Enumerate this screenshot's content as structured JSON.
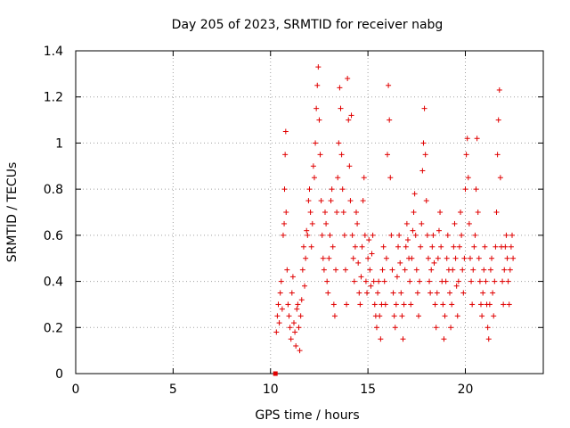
{
  "chart_data": {
    "type": "scatter",
    "title": "Day 205 of 2023, SRMTID for receiver nabg",
    "xlabel": "GPS time / hours",
    "ylabel": "SRMTID / TECUs",
    "xlim": [
      0,
      24
    ],
    "ylim": [
      0,
      1.4
    ],
    "xticks": [
      "0",
      "5",
      "10",
      "15",
      "20"
    ],
    "xtick_values": [
      0,
      5,
      10,
      15,
      20
    ],
    "yticks": [
      "0",
      "0.2",
      "0.4",
      "0.6",
      "0.8",
      "1",
      "1.2",
      "1.4"
    ],
    "ytick_values": [
      0,
      0.2,
      0.4,
      0.6,
      0.8,
      1.0,
      1.2,
      1.4
    ],
    "grid": true,
    "marker": "+",
    "color": "#e00000",
    "zero_marker": {
      "x": 10.25,
      "y": 0.0
    },
    "series": [
      {
        "values": [
          [
            10.3,
            0.18
          ],
          [
            10.35,
            0.25
          ],
          [
            10.4,
            0.3
          ],
          [
            10.45,
            0.22
          ],
          [
            10.5,
            0.35
          ],
          [
            10.55,
            0.4
          ],
          [
            10.6,
            0.28
          ],
          [
            10.65,
            0.6
          ],
          [
            10.7,
            0.65
          ],
          [
            10.72,
            0.8
          ],
          [
            10.75,
            0.95
          ],
          [
            10.78,
            1.05
          ],
          [
            10.8,
            0.7
          ],
          [
            10.85,
            0.45
          ],
          [
            10.9,
            0.3
          ],
          [
            10.95,
            0.25
          ],
          [
            11.0,
            0.2
          ],
          [
            11.05,
            0.15
          ],
          [
            11.1,
            0.35
          ],
          [
            11.15,
            0.42
          ],
          [
            11.2,
            0.22
          ],
          [
            11.25,
            0.18
          ],
          [
            11.3,
            0.12
          ],
          [
            11.35,
            0.28
          ],
          [
            11.4,
            0.3
          ],
          [
            11.45,
            0.2
          ],
          [
            11.5,
            0.1
          ],
          [
            11.55,
            0.25
          ],
          [
            11.6,
            0.32
          ],
          [
            11.65,
            0.45
          ],
          [
            11.7,
            0.55
          ],
          [
            11.75,
            0.38
          ],
          [
            11.8,
            0.5
          ],
          [
            11.85,
            0.62
          ],
          [
            11.9,
            0.6
          ],
          [
            11.95,
            0.75
          ],
          [
            12.0,
            0.8
          ],
          [
            12.05,
            0.7
          ],
          [
            12.1,
            0.55
          ],
          [
            12.15,
            0.65
          ],
          [
            12.2,
            0.9
          ],
          [
            12.25,
            0.85
          ],
          [
            12.3,
            1.0
          ],
          [
            12.35,
            1.15
          ],
          [
            12.4,
            1.25
          ],
          [
            12.45,
            1.33
          ],
          [
            12.5,
            1.1
          ],
          [
            12.55,
            0.95
          ],
          [
            12.6,
            0.75
          ],
          [
            12.65,
            0.6
          ],
          [
            12.7,
            0.5
          ],
          [
            12.75,
            0.45
          ],
          [
            12.8,
            0.7
          ],
          [
            12.85,
            0.65
          ],
          [
            12.9,
            0.4
          ],
          [
            12.95,
            0.35
          ],
          [
            13.0,
            0.5
          ],
          [
            13.05,
            0.6
          ],
          [
            13.1,
            0.75
          ],
          [
            13.15,
            0.8
          ],
          [
            13.2,
            0.55
          ],
          [
            13.25,
            0.3
          ],
          [
            13.3,
            0.25
          ],
          [
            13.35,
            0.45
          ],
          [
            13.4,
            0.7
          ],
          [
            13.45,
            0.85
          ],
          [
            13.5,
            1.0
          ],
          [
            13.55,
            1.24
          ],
          [
            13.6,
            1.15
          ],
          [
            13.65,
            0.95
          ],
          [
            13.7,
            0.8
          ],
          [
            13.75,
            0.7
          ],
          [
            13.8,
            0.6
          ],
          [
            13.85,
            0.45
          ],
          [
            13.9,
            0.3
          ],
          [
            13.95,
            1.28
          ],
          [
            14.0,
            1.1
          ],
          [
            14.05,
            0.9
          ],
          [
            14.1,
            0.75
          ],
          [
            14.15,
            1.12
          ],
          [
            14.2,
            0.6
          ],
          [
            14.25,
            0.5
          ],
          [
            14.3,
            0.4
          ],
          [
            14.35,
            0.55
          ],
          [
            14.4,
            0.7
          ],
          [
            14.45,
            0.65
          ],
          [
            14.5,
            0.48
          ],
          [
            14.55,
            0.35
          ],
          [
            14.6,
            0.3
          ],
          [
            14.65,
            0.42
          ],
          [
            14.7,
            0.55
          ],
          [
            14.75,
            0.75
          ],
          [
            14.8,
            0.85
          ],
          [
            14.85,
            0.6
          ],
          [
            14.9,
            0.4
          ],
          [
            14.95,
            0.35
          ],
          [
            15.0,
            0.5
          ],
          [
            15.05,
            0.58
          ],
          [
            15.1,
            0.45
          ],
          [
            15.15,
            0.38
          ],
          [
            15.2,
            0.52
          ],
          [
            15.25,
            0.6
          ],
          [
            15.3,
            0.4
          ],
          [
            15.35,
            0.3
          ],
          [
            15.4,
            0.25
          ],
          [
            15.45,
            0.2
          ],
          [
            15.5,
            0.35
          ],
          [
            15.55,
            0.4
          ],
          [
            15.6,
            0.25
          ],
          [
            15.65,
            0.15
          ],
          [
            15.7,
            0.3
          ],
          [
            15.75,
            0.45
          ],
          [
            15.8,
            0.55
          ],
          [
            15.85,
            0.4
          ],
          [
            15.9,
            0.3
          ],
          [
            15.95,
            0.5
          ],
          [
            16.0,
            0.95
          ],
          [
            16.05,
            1.25
          ],
          [
            16.1,
            1.1
          ],
          [
            16.15,
            0.85
          ],
          [
            16.2,
            0.6
          ],
          [
            16.25,
            0.45
          ],
          [
            16.3,
            0.35
          ],
          [
            16.35,
            0.25
          ],
          [
            16.4,
            0.2
          ],
          [
            16.45,
            0.3
          ],
          [
            16.5,
            0.42
          ],
          [
            16.55,
            0.55
          ],
          [
            16.6,
            0.6
          ],
          [
            16.65,
            0.48
          ],
          [
            16.7,
            0.35
          ],
          [
            16.75,
            0.25
          ],
          [
            16.8,
            0.15
          ],
          [
            16.85,
            0.3
          ],
          [
            16.9,
            0.45
          ],
          [
            16.95,
            0.55
          ],
          [
            17.0,
            0.65
          ],
          [
            17.05,
            0.58
          ],
          [
            17.1,
            0.5
          ],
          [
            17.15,
            0.4
          ],
          [
            17.2,
            0.3
          ],
          [
            17.25,
            0.5
          ],
          [
            17.3,
            0.62
          ],
          [
            17.35,
            0.7
          ],
          [
            17.4,
            0.78
          ],
          [
            17.45,
            0.6
          ],
          [
            17.5,
            0.45
          ],
          [
            17.55,
            0.35
          ],
          [
            17.6,
            0.25
          ],
          [
            17.65,
            0.4
          ],
          [
            17.7,
            0.55
          ],
          [
            17.75,
            0.65
          ],
          [
            17.8,
            0.88
          ],
          [
            17.85,
            1.0
          ],
          [
            17.9,
            1.15
          ],
          [
            17.95,
            0.95
          ],
          [
            18.0,
            0.75
          ],
          [
            18.05,
            0.6
          ],
          [
            18.1,
            0.5
          ],
          [
            18.15,
            0.4
          ],
          [
            18.2,
            0.35
          ],
          [
            18.25,
            0.45
          ],
          [
            18.3,
            0.55
          ],
          [
            18.35,
            0.6
          ],
          [
            18.4,
            0.48
          ],
          [
            18.45,
            0.3
          ],
          [
            18.5,
            0.2
          ],
          [
            18.55,
            0.35
          ],
          [
            18.6,
            0.5
          ],
          [
            18.65,
            0.62
          ],
          [
            18.7,
            0.7
          ],
          [
            18.75,
            0.55
          ],
          [
            18.8,
            0.4
          ],
          [
            18.85,
            0.3
          ],
          [
            18.9,
            0.15
          ],
          [
            18.95,
            0.25
          ],
          [
            19.0,
            0.4
          ],
          [
            19.05,
            0.5
          ],
          [
            19.1,
            0.6
          ],
          [
            19.15,
            0.45
          ],
          [
            19.2,
            0.35
          ],
          [
            19.25,
            0.2
          ],
          [
            19.3,
            0.3
          ],
          [
            19.35,
            0.45
          ],
          [
            19.4,
            0.55
          ],
          [
            19.45,
            0.65
          ],
          [
            19.5,
            0.5
          ],
          [
            19.55,
            0.38
          ],
          [
            19.6,
            0.25
          ],
          [
            19.65,
            0.4
          ],
          [
            19.7,
            0.55
          ],
          [
            19.75,
            0.7
          ],
          [
            19.8,
            0.6
          ],
          [
            19.85,
            0.45
          ],
          [
            19.9,
            0.35
          ],
          [
            19.95,
            0.5
          ],
          [
            20.0,
            0.8
          ],
          [
            20.05,
            0.95
          ],
          [
            20.1,
            1.02
          ],
          [
            20.15,
            0.85
          ],
          [
            20.2,
            0.65
          ],
          [
            20.25,
            0.5
          ],
          [
            20.3,
            0.4
          ],
          [
            20.35,
            0.3
          ],
          [
            20.4,
            0.45
          ],
          [
            20.45,
            0.55
          ],
          [
            20.5,
            0.6
          ],
          [
            20.55,
            0.8
          ],
          [
            20.6,
            1.02
          ],
          [
            20.65,
            0.7
          ],
          [
            20.7,
            0.5
          ],
          [
            20.75,
            0.4
          ],
          [
            20.8,
            0.3
          ],
          [
            20.85,
            0.25
          ],
          [
            20.9,
            0.35
          ],
          [
            20.95,
            0.45
          ],
          [
            21.0,
            0.55
          ],
          [
            21.05,
            0.4
          ],
          [
            21.1,
            0.3
          ],
          [
            21.15,
            0.2
          ],
          [
            21.2,
            0.15
          ],
          [
            21.25,
            0.3
          ],
          [
            21.3,
            0.45
          ],
          [
            21.35,
            0.5
          ],
          [
            21.4,
            0.35
          ],
          [
            21.45,
            0.25
          ],
          [
            21.5,
            0.4
          ],
          [
            21.55,
            0.55
          ],
          [
            21.6,
            0.7
          ],
          [
            21.65,
            0.95
          ],
          [
            21.7,
            1.1
          ],
          [
            21.75,
            1.23
          ],
          [
            21.8,
            0.85
          ],
          [
            21.85,
            0.55
          ],
          [
            21.9,
            0.4
          ],
          [
            21.95,
            0.3
          ],
          [
            22.0,
            0.45
          ],
          [
            22.05,
            0.55
          ],
          [
            22.1,
            0.6
          ],
          [
            22.15,
            0.5
          ],
          [
            22.2,
            0.4
          ],
          [
            22.25,
            0.3
          ],
          [
            22.3,
            0.45
          ],
          [
            22.35,
            0.55
          ],
          [
            22.4,
            0.6
          ],
          [
            22.45,
            0.5
          ]
        ]
      }
    ]
  }
}
